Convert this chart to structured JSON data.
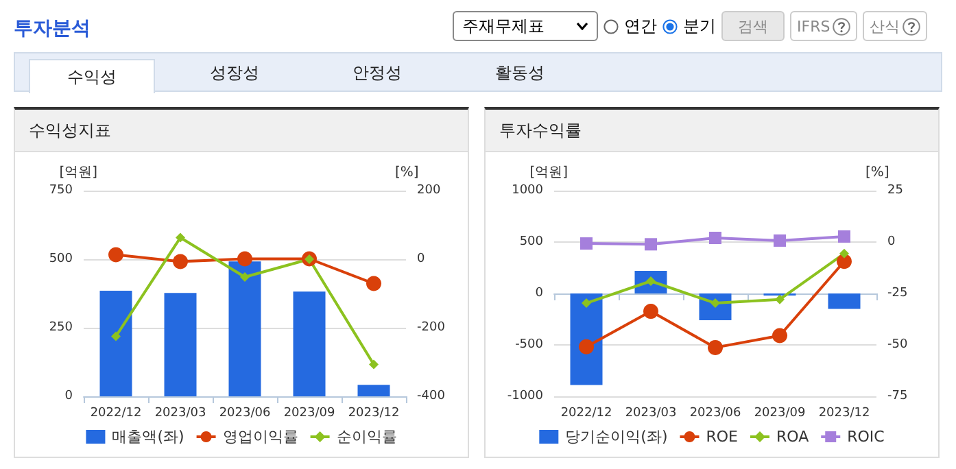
{
  "chart_data": [
    {
      "type": "bar",
      "title": "수익성지표",
      "annotations": [
        "투자분석",
        "주재무제표",
        "연간",
        "분기",
        "검색",
        "IFRS",
        "산식",
        "수익성",
        "성장성",
        "안정성",
        "활동성"
      ],
      "categories": [
        "2022/12",
        "2023/03",
        "2023/06",
        "2023/09",
        "2023/12"
      ],
      "ylabel": "[억원]",
      "y2label": "[%]",
      "ylim": [
        0,
        750
      ],
      "yticks": [
        0,
        250,
        500,
        750
      ],
      "y2lim": [
        -400,
        200
      ],
      "y2ticks": [
        -400,
        -200,
        0,
        200
      ],
      "grid": "y",
      "legend": "bottom",
      "series": [
        {
          "name": "매출액(좌)",
          "color": "#256ae0",
          "values": [
            385,
            377,
            492,
            382,
            42
          ]
        },
        {
          "name": "영업이익률",
          "type": "line",
          "axis": "y2",
          "marker": "circle",
          "color": "#d9400a",
          "values": [
            13,
            -7,
            1,
            1,
            -71
          ]
        },
        {
          "name": "순이익률",
          "type": "line",
          "axis": "y2",
          "marker": "diamond",
          "color": "#8cc21f",
          "values": [
            -225,
            63,
            -52,
            0,
            -307
          ]
        }
      ]
    },
    {
      "type": "bar",
      "title": "투자수익률",
      "categories": [
        "2022/12",
        "2023/03",
        "2023/06",
        "2023/09",
        "2023/12"
      ],
      "ylabel": "[억원]",
      "y2label": "[%]",
      "ylim": [
        -1000,
        1000
      ],
      "yticks": [
        -1000,
        -500,
        0,
        500,
        1000
      ],
      "y2lim": [
        -75,
        25
      ],
      "y2ticks": [
        -75,
        -50,
        -25,
        0,
        25
      ],
      "grid": "y",
      "legend": "bottom",
      "series": [
        {
          "name": "당기순이익(좌)",
          "color": "#256ae0",
          "values": [
            -890,
            220,
            -260,
            -20,
            -150
          ]
        },
        {
          "name": "ROE",
          "type": "line",
          "axis": "y2",
          "marker": "circle",
          "color": "#d9400a",
          "values": [
            -50.9,
            -33.7,
            -51.3,
            -45.5,
            -9.4
          ]
        },
        {
          "name": "ROA",
          "type": "line",
          "axis": "y2",
          "marker": "diamond",
          "color": "#8cc21f",
          "values": [
            -29.7,
            -19,
            -29.7,
            -27.9,
            -5.6
          ]
        },
        {
          "name": "ROIC",
          "type": "line",
          "axis": "y2",
          "marker": "square",
          "color": "#a57fdc",
          "values": [
            -0.7,
            -1.1,
            2,
            0.7,
            2.7
          ]
        }
      ]
    }
  ]
}
